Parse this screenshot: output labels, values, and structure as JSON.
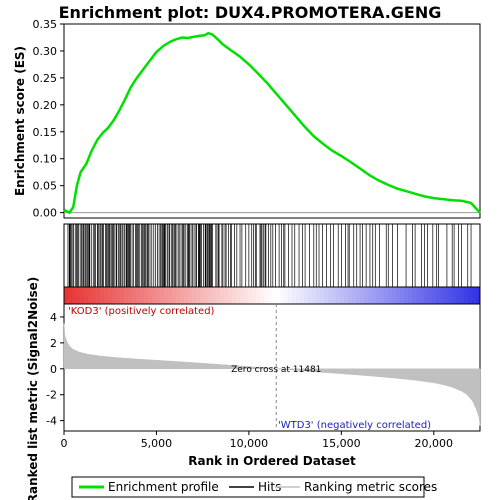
{
  "chart_data": {
    "type": "line",
    "title": "Enrichment plot: DUX4.PROMOTERA.GENG",
    "xlabel": "Rank in Ordered Dataset",
    "es_panel": {
      "ylabel": "Enrichment score (ES)",
      "ylim": [
        -0.01,
        0.35
      ],
      "yticks": [
        "0.00",
        "0.05",
        "0.10",
        "0.15",
        "0.20",
        "0.25",
        "0.30",
        "0.35"
      ],
      "series": [
        {
          "name": "Enrichment profile",
          "color": "#00e000",
          "x": [
            0,
            300,
            500,
            700,
            900,
            1200,
            1500,
            1800,
            2100,
            2400,
            2700,
            3000,
            3300,
            3600,
            3900,
            4200,
            4600,
            5000,
            5400,
            5800,
            6100,
            6400,
            6700,
            7000,
            7300,
            7600,
            7800,
            8000,
            8300,
            8600,
            9000,
            9500,
            10000,
            10500,
            11000,
            11500,
            12000,
            12500,
            13000,
            13500,
            14000,
            14500,
            15000,
            15500,
            16000,
            16500,
            17000,
            17500,
            18000,
            18500,
            19000,
            19500,
            20000,
            20500,
            21000,
            21500,
            22000,
            22500
          ],
          "y": [
            0.005,
            0.0,
            0.01,
            0.05,
            0.075,
            0.09,
            0.115,
            0.135,
            0.148,
            0.158,
            0.172,
            0.19,
            0.21,
            0.232,
            0.248,
            0.262,
            0.28,
            0.298,
            0.31,
            0.318,
            0.322,
            0.325,
            0.324,
            0.326,
            0.328,
            0.329,
            0.333,
            0.331,
            0.322,
            0.312,
            0.302,
            0.29,
            0.275,
            0.258,
            0.24,
            0.22,
            0.2,
            0.18,
            0.16,
            0.142,
            0.128,
            0.115,
            0.105,
            0.094,
            0.082,
            0.07,
            0.06,
            0.052,
            0.045,
            0.04,
            0.035,
            0.03,
            0.027,
            0.025,
            0.023,
            0.022,
            0.018,
            0.0
          ]
        }
      ]
    },
    "rank_panel": {
      "ylabel": "Ranked list metric (Signal2Noise)",
      "ylim": [
        -4.8,
        5.0
      ],
      "yticks": [
        "-4",
        "-2",
        "0",
        "2",
        "4"
      ],
      "series": [
        {
          "name": "Ranking metric scores",
          "color": "#c0c0c0",
          "x": [
            0,
            50,
            150,
            300,
            500,
            800,
            1200,
            2000,
            3000,
            4000,
            5000,
            6000,
            7000,
            8000,
            9000,
            10000,
            11000,
            11481,
            12000,
            13000,
            14000,
            15000,
            16000,
            17000,
            18000,
            19000,
            20000,
            20500,
            21000,
            21500,
            21800,
            22100,
            22300,
            22450,
            22500
          ],
          "y": [
            3.5,
            2.6,
            2.1,
            1.75,
            1.5,
            1.3,
            1.15,
            0.98,
            0.85,
            0.75,
            0.66,
            0.57,
            0.48,
            0.38,
            0.28,
            0.17,
            0.06,
            0.0,
            -0.06,
            -0.17,
            -0.28,
            -0.38,
            -0.49,
            -0.6,
            -0.73,
            -0.88,
            -1.08,
            -1.22,
            -1.42,
            -1.72,
            -2.0,
            -2.5,
            -3.1,
            -3.8,
            -4.4
          ]
        }
      ],
      "zero_cross_label": "Zero cross at 11481",
      "zero_cross_rank": 11481,
      "positive_label": "'KOD3' (positively correlated)",
      "negative_label": "'WTD3' (negatively correlated)"
    },
    "xlim": [
      0,
      22500
    ],
    "xticks": [
      "0",
      "5,000",
      "10,000",
      "15,000",
      "20,000"
    ],
    "xtick_values": [
      0,
      5000,
      10000,
      15000,
      20000
    ],
    "legend": {
      "placement": "bottom",
      "entries": [
        "Enrichment profile",
        "Hits",
        "Ranking metric scores"
      ]
    },
    "colors": {
      "es_line": "#00e000",
      "hits": "#000000",
      "metric_fill": "#c0c0c0",
      "bar_positive": "#e8322c",
      "bar_negative": "#3232e6"
    }
  }
}
